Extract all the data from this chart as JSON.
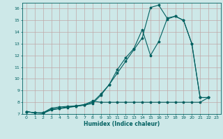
{
  "xlabel": "Humidex (Indice chaleur)",
  "background_color": "#cde8e8",
  "grid_color": "#c0a8a8",
  "line_color": "#006060",
  "x_values": [
    0,
    1,
    2,
    3,
    4,
    5,
    6,
    7,
    8,
    9,
    10,
    11,
    12,
    13,
    14,
    15,
    16,
    17,
    18,
    19,
    20,
    21,
    22,
    23
  ],
  "line1": [
    7.2,
    7.1,
    7.05,
    7.35,
    7.45,
    7.55,
    7.65,
    7.75,
    7.9,
    8.6,
    9.5,
    10.5,
    11.5,
    12.5,
    13.5,
    16.1,
    16.3,
    15.2,
    15.35,
    15.0,
    13.0,
    8.4,
    8.4,
    null
  ],
  "line2": [
    7.2,
    7.1,
    7.1,
    7.4,
    7.5,
    7.6,
    7.65,
    7.8,
    8.0,
    8.7,
    9.5,
    10.8,
    11.8,
    12.6,
    14.2,
    12.0,
    13.2,
    15.1,
    15.35,
    15.0,
    13.0,
    8.4,
    8.4,
    null
  ],
  "line3": [
    7.2,
    7.1,
    7.1,
    7.5,
    7.6,
    7.65,
    7.7,
    7.8,
    8.1,
    8.0,
    8.0,
    8.0,
    8.0,
    8.0,
    8.0,
    8.0,
    8.0,
    8.0,
    8.0,
    8.0,
    8.0,
    8.0,
    8.4,
    null
  ],
  "ylim": [
    7,
    16.5
  ],
  "xlim": [
    -0.5,
    23.5
  ],
  "yticks": [
    7,
    8,
    9,
    10,
    11,
    12,
    13,
    14,
    15,
    16
  ],
  "xticks": [
    0,
    1,
    2,
    3,
    4,
    5,
    6,
    7,
    8,
    9,
    10,
    11,
    12,
    13,
    14,
    15,
    16,
    17,
    18,
    19,
    20,
    21,
    22,
    23
  ]
}
